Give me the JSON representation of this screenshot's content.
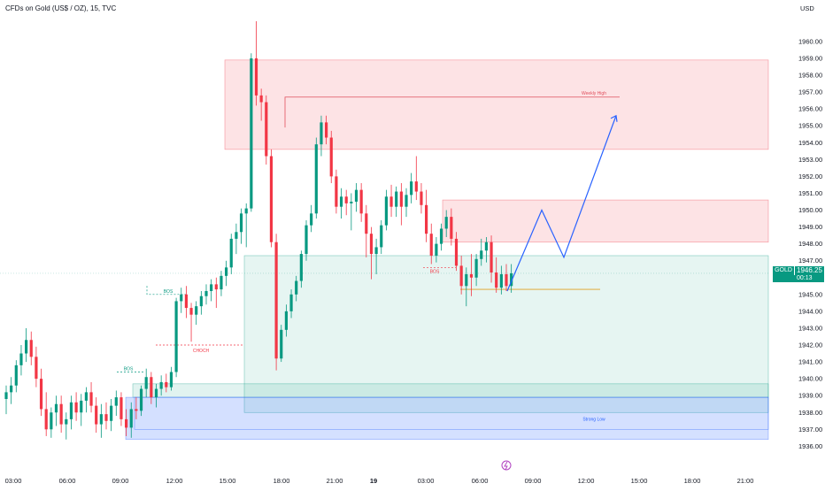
{
  "header": {
    "title": "CFDs on Gold (US$ / OZ), 15, TVC",
    "currency": "USD"
  },
  "price_tag": {
    "symbol": "GOLD",
    "price": "1946.25",
    "countdown": "00:13"
  },
  "colors": {
    "up": "#089981",
    "down": "#f23645",
    "supply_zone": "#f23645",
    "demand_zone": "#089981",
    "blue_zone": "#2962ff",
    "projection": "#2962ff",
    "weekly_high_line": "#e0505e",
    "current_price_line": "#e0a020"
  },
  "chart_data": {
    "type": "candlestick",
    "title": "CFDs on Gold (US$ / OZ), 15, TVC",
    "interval": "15",
    "y_axis": {
      "position": "right",
      "range": [
        1935.6,
        1961.2
      ],
      "ticks": [
        "1936.00",
        "1937.00",
        "1938.00",
        "1939.00",
        "1940.00",
        "1941.00",
        "1942.00",
        "1943.00",
        "1944.00",
        "1945.00",
        "1946.00",
        "1947.00",
        "1948.00",
        "1949.00",
        "1950.00",
        "1951.00",
        "1952.00",
        "1953.00",
        "1954.00",
        "1955.00",
        "1956.00",
        "1957.00",
        "1958.00",
        "1959.00",
        "1960.00"
      ]
    },
    "x_axis": {
      "ticks": [
        "03:00",
        "06:00",
        "09:00",
        "12:00",
        "15:00",
        "18:00",
        "21:00",
        "19",
        "03:00",
        "06:00",
        "09:00",
        "12:00",
        "15:00",
        "18:00",
        "21:00"
      ]
    },
    "ohlc": [
      [
        1938.8,
        1939.6,
        1937.9,
        1939.2
      ],
      [
        1939.2,
        1940.1,
        1938.5,
        1939.6
      ],
      [
        1939.6,
        1941.1,
        1939.2,
        1940.8
      ],
      [
        1940.8,
        1942.0,
        1940.2,
        1941.5
      ],
      [
        1941.5,
        1943.0,
        1941.0,
        1942.3
      ],
      [
        1942.3,
        1942.8,
        1940.8,
        1941.3
      ],
      [
        1941.3,
        1941.9,
        1939.5,
        1940.0
      ],
      [
        1940.0,
        1940.6,
        1937.8,
        1938.2
      ],
      [
        1938.2,
        1939.2,
        1936.6,
        1937.0
      ],
      [
        1937.0,
        1938.3,
        1936.5,
        1938.0
      ],
      [
        1938.0,
        1939.0,
        1937.2,
        1938.5
      ],
      [
        1938.5,
        1939.0,
        1936.8,
        1937.3
      ],
      [
        1937.3,
        1938.0,
        1936.4,
        1937.6
      ],
      [
        1937.6,
        1939.0,
        1937.0,
        1938.6
      ],
      [
        1938.6,
        1939.2,
        1937.5,
        1938.0
      ],
      [
        1938.0,
        1939.1,
        1937.2,
        1938.7
      ],
      [
        1938.7,
        1939.5,
        1938.0,
        1939.2
      ],
      [
        1939.2,
        1939.8,
        1938.0,
        1938.4
      ],
      [
        1938.4,
        1938.9,
        1936.8,
        1937.3
      ],
      [
        1937.3,
        1938.5,
        1936.5,
        1937.9
      ],
      [
        1937.9,
        1938.6,
        1937.0,
        1937.5
      ],
      [
        1937.5,
        1938.8,
        1936.9,
        1938.4
      ],
      [
        1938.4,
        1939.3,
        1937.8,
        1938.9
      ],
      [
        1938.9,
        1939.2,
        1937.2,
        1937.6
      ],
      [
        1937.6,
        1938.2,
        1936.6,
        1937.1
      ],
      [
        1937.1,
        1938.6,
        1936.5,
        1938.2
      ],
      [
        1938.2,
        1938.9,
        1937.6,
        1938.1
      ],
      [
        1938.1,
        1939.6,
        1937.8,
        1939.4
      ],
      [
        1939.4,
        1940.6,
        1938.9,
        1940.1
      ],
      [
        1940.1,
        1940.4,
        1938.5,
        1938.9
      ],
      [
        1938.9,
        1939.7,
        1938.3,
        1939.4
      ],
      [
        1939.4,
        1940.2,
        1939.0,
        1939.8
      ],
      [
        1939.8,
        1940.3,
        1939.2,
        1939.5
      ],
      [
        1939.5,
        1940.7,
        1939.3,
        1940.4
      ],
      [
        1940.4,
        1944.8,
        1940.1,
        1944.6
      ],
      [
        1944.6,
        1945.4,
        1943.9,
        1945.0
      ],
      [
        1945.0,
        1945.5,
        1943.6,
        1944.2
      ],
      [
        1944.2,
        1944.5,
        1942.2,
        1943.8
      ],
      [
        1943.8,
        1944.6,
        1943.2,
        1944.3
      ],
      [
        1944.3,
        1945.2,
        1943.8,
        1944.9
      ],
      [
        1944.9,
        1945.6,
        1944.4,
        1945.2
      ],
      [
        1945.2,
        1945.9,
        1944.6,
        1945.6
      ],
      [
        1945.6,
        1946.0,
        1944.2,
        1945.3
      ],
      [
        1945.3,
        1946.4,
        1944.9,
        1946.1
      ],
      [
        1946.1,
        1947.0,
        1945.5,
        1946.6
      ],
      [
        1946.6,
        1948.6,
        1946.2,
        1948.3
      ],
      [
        1948.3,
        1949.2,
        1947.4,
        1948.7
      ],
      [
        1948.7,
        1950.1,
        1948.0,
        1949.8
      ],
      [
        1949.8,
        1950.4,
        1947.8,
        1950.1
      ],
      [
        1950.1,
        1959.3,
        1949.9,
        1959.0
      ],
      [
        1959.0,
        1961.2,
        1956.2,
        1956.8
      ],
      [
        1956.8,
        1957.2,
        1955.3,
        1956.4
      ],
      [
        1956.4,
        1956.8,
        1952.7,
        1953.2
      ],
      [
        1953.2,
        1953.6,
        1947.8,
        1948.1
      ],
      [
        1948.1,
        1948.6,
        1940.5,
        1941.2
      ],
      [
        1941.2,
        1943.2,
        1941.0,
        1942.9
      ],
      [
        1942.9,
        1944.4,
        1942.5,
        1944.0
      ],
      [
        1944.0,
        1945.3,
        1943.6,
        1945.0
      ],
      [
        1945.0,
        1946.1,
        1944.6,
        1945.8
      ],
      [
        1945.8,
        1947.6,
        1945.4,
        1947.4
      ],
      [
        1947.4,
        1949.4,
        1947.0,
        1949.1
      ],
      [
        1949.1,
        1950.3,
        1948.7,
        1949.8
      ],
      [
        1949.8,
        1954.3,
        1949.5,
        1953.9
      ],
      [
        1953.9,
        1955.6,
        1953.2,
        1955.2
      ],
      [
        1955.2,
        1955.6,
        1953.9,
        1954.3
      ],
      [
        1954.3,
        1954.7,
        1951.6,
        1952.0
      ],
      [
        1952.0,
        1952.4,
        1949.8,
        1950.2
      ],
      [
        1950.2,
        1951.3,
        1949.5,
        1950.8
      ],
      [
        1950.8,
        1951.2,
        1949.7,
        1950.4
      ],
      [
        1950.4,
        1951.0,
        1948.8,
        1950.5
      ],
      [
        1950.5,
        1951.6,
        1949.9,
        1951.2
      ],
      [
        1951.2,
        1951.6,
        1949.3,
        1949.8
      ],
      [
        1949.8,
        1950.3,
        1947.2,
        1948.6
      ],
      [
        1948.6,
        1949.0,
        1945.9,
        1947.4
      ],
      [
        1947.4,
        1948.3,
        1946.2,
        1947.8
      ],
      [
        1947.8,
        1949.4,
        1947.4,
        1949.1
      ],
      [
        1949.1,
        1951.2,
        1948.8,
        1950.8
      ],
      [
        1950.8,
        1951.5,
        1949.6,
        1950.2
      ],
      [
        1950.2,
        1951.4,
        1949.6,
        1951.1
      ],
      [
        1951.1,
        1951.6,
        1949.1,
        1950.2
      ],
      [
        1950.2,
        1951.3,
        1949.6,
        1950.9
      ],
      [
        1950.9,
        1952.2,
        1950.4,
        1951.7
      ],
      [
        1951.7,
        1953.2,
        1950.6,
        1951.1
      ],
      [
        1951.1,
        1951.6,
        1949.8,
        1950.3
      ],
      [
        1950.3,
        1951.2,
        1948.1,
        1948.6
      ],
      [
        1948.6,
        1949.2,
        1946.8,
        1947.3
      ],
      [
        1947.3,
        1948.4,
        1946.9,
        1948.0
      ],
      [
        1948.0,
        1949.2,
        1947.6,
        1948.9
      ],
      [
        1948.9,
        1950.0,
        1948.4,
        1949.6
      ],
      [
        1949.6,
        1950.1,
        1947.9,
        1948.3
      ],
      [
        1948.3,
        1948.7,
        1946.4,
        1946.7
      ],
      [
        1946.7,
        1947.3,
        1945.0,
        1945.5
      ],
      [
        1945.5,
        1946.6,
        1944.3,
        1946.2
      ],
      [
        1946.2,
        1947.4,
        1944.9,
        1946.0
      ],
      [
        1946.0,
        1947.4,
        1945.5,
        1947.1
      ],
      [
        1947.1,
        1948.3,
        1946.7,
        1947.6
      ],
      [
        1947.6,
        1948.4,
        1946.9,
        1948.1
      ],
      [
        1948.1,
        1948.5,
        1945.7,
        1946.3
      ],
      [
        1946.3,
        1947.2,
        1945.1,
        1945.4
      ],
      [
        1945.4,
        1946.7,
        1945.0,
        1946.2
      ],
      [
        1946.2,
        1946.8,
        1945.2,
        1945.5
      ],
      [
        1945.5,
        1946.8,
        1945.1,
        1946.25
      ]
    ],
    "annotations": {
      "weekly_high": "Weekly High",
      "bos_1": "BOS",
      "bos_2": "BOS",
      "bos_3": "BOS",
      "choch": "CHOCH",
      "entry_label": "Strong Low"
    },
    "zones": [
      {
        "name": "supply-upper",
        "from": 1953.6,
        "to": 1958.9
      },
      {
        "name": "supply-lower",
        "from": 1948.1,
        "to": 1950.6
      },
      {
        "name": "demand-large",
        "from": 1938.0,
        "to": 1947.3
      },
      {
        "name": "demand-inner",
        "from": 1938.9,
        "to": 1939.7
      },
      {
        "name": "blue-zone",
        "from": 1936.4,
        "to": 1938.9
      }
    ],
    "projection_path": [
      1945.2,
      1950.0,
      1947.2,
      1955.6
    ],
    "grid": false,
    "legend": "none"
  }
}
